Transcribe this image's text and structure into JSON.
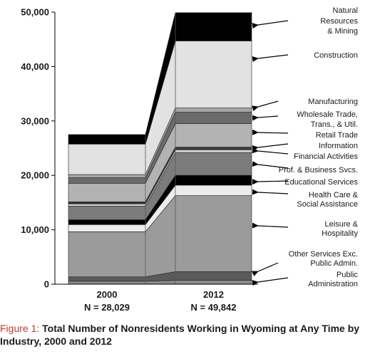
{
  "chart_data": {
    "type": "area",
    "x": [
      "2000",
      "2012"
    ],
    "x_sublabels": [
      "N = 28,029",
      "N = 49,842"
    ],
    "ylim": [
      0,
      50000
    ],
    "yticks": [
      0,
      10000,
      20000,
      30000,
      40000,
      50000
    ],
    "ytick_labels": [
      "0",
      "10,000",
      "20,000",
      "30,000",
      "40,000",
      "50,000"
    ],
    "grid": false,
    "stacked": true,
    "legend_placement": "right (arrow annotations)",
    "series": [
      {
        "name": "Public Administration",
        "label_lines": [
          "Public",
          "Administration"
        ],
        "values": [
          550,
          700
        ],
        "color": "#8c8c8c"
      },
      {
        "name": "Other Services Exc. Public Admin.",
        "label_lines": [
          "Other Services Exc.",
          "Public Admin."
        ],
        "values": [
          800,
          1600
        ],
        "color": "#5a5a5a"
      },
      {
        "name": "Leisure & Hospitality",
        "label_lines": [
          "Leisure &",
          "Hospitality"
        ],
        "values": [
          8300,
          14000
        ],
        "color": "#9b9b9b"
      },
      {
        "name": "Health Care & Social Assistance",
        "label_lines": [
          "Health Care &",
          "Social Assistance"
        ],
        "values": [
          1300,
          1900
        ],
        "color": "#ececec"
      },
      {
        "name": "Educational Services",
        "label_lines": [
          "Educational Services"
        ],
        "values": [
          900,
          1800
        ],
        "color": "#000000"
      },
      {
        "name": "Prof. & Business Svcs.",
        "label_lines": [
          "Prof. & Business Svcs."
        ],
        "values": [
          2500,
          4200
        ],
        "color": "#7b7b7b"
      },
      {
        "name": "Financial Activities",
        "label_lines": [
          "Financial Activities"
        ],
        "values": [
          400,
          500
        ],
        "color": "#d8d8d8"
      },
      {
        "name": "Information",
        "label_lines": [
          "Information"
        ],
        "values": [
          400,
          500
        ],
        "color": "#3a3a3a"
      },
      {
        "name": "Retail Trade",
        "label_lines": [
          "Retail Trade"
        ],
        "values": [
          3400,
          4300
        ],
        "color": "#b3b3b3"
      },
      {
        "name": "Wholesale Trade, Trans., & Util.",
        "label_lines": [
          "Wholesale Trade,",
          "Trans., & Util."
        ],
        "values": [
          1000,
          2100
        ],
        "color": "#6b6b6b"
      },
      {
        "name": "Manufacturing",
        "label_lines": [
          "Manufacturing"
        ],
        "values": [
          600,
          800
        ],
        "color": "#a6a6a6"
      },
      {
        "name": "Construction",
        "label_lines": [
          "Construction"
        ],
        "values": [
          5600,
          12300
        ],
        "color": "#e2e2e2"
      },
      {
        "name": "Natural Resources & Mining",
        "label_lines": [
          "Natural",
          "Resources",
          "& Mining"
        ],
        "values": [
          1750,
          5200
        ],
        "color": "#000000"
      }
    ]
  },
  "caption": {
    "label": "Figure 1: ",
    "title": "Total Number of Nonresidents Working in Wyoming at Any Time by Industry, 2000 and 2012"
  }
}
